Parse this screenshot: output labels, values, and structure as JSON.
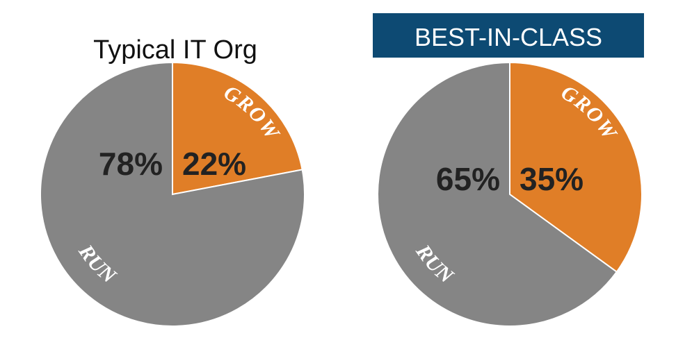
{
  "chart_data": [
    {
      "type": "pie",
      "title": "Typical IT Org",
      "title_style": "plain",
      "slices": [
        {
          "label": "GROW",
          "value": 22,
          "value_label": "22%",
          "color": "#E07E27"
        },
        {
          "label": "RUN",
          "value": 78,
          "value_label": "78%",
          "color": "#858585"
        }
      ]
    },
    {
      "type": "pie",
      "title": "BEST-IN-CLASS",
      "title_style": "banner",
      "banner_color": "#0D4A73",
      "slices": [
        {
          "label": "GROW",
          "value": 35,
          "value_label": "35%",
          "color": "#E07E27"
        },
        {
          "label": "RUN",
          "value": 65,
          "value_label": "65%",
          "color": "#858585"
        }
      ]
    }
  ]
}
